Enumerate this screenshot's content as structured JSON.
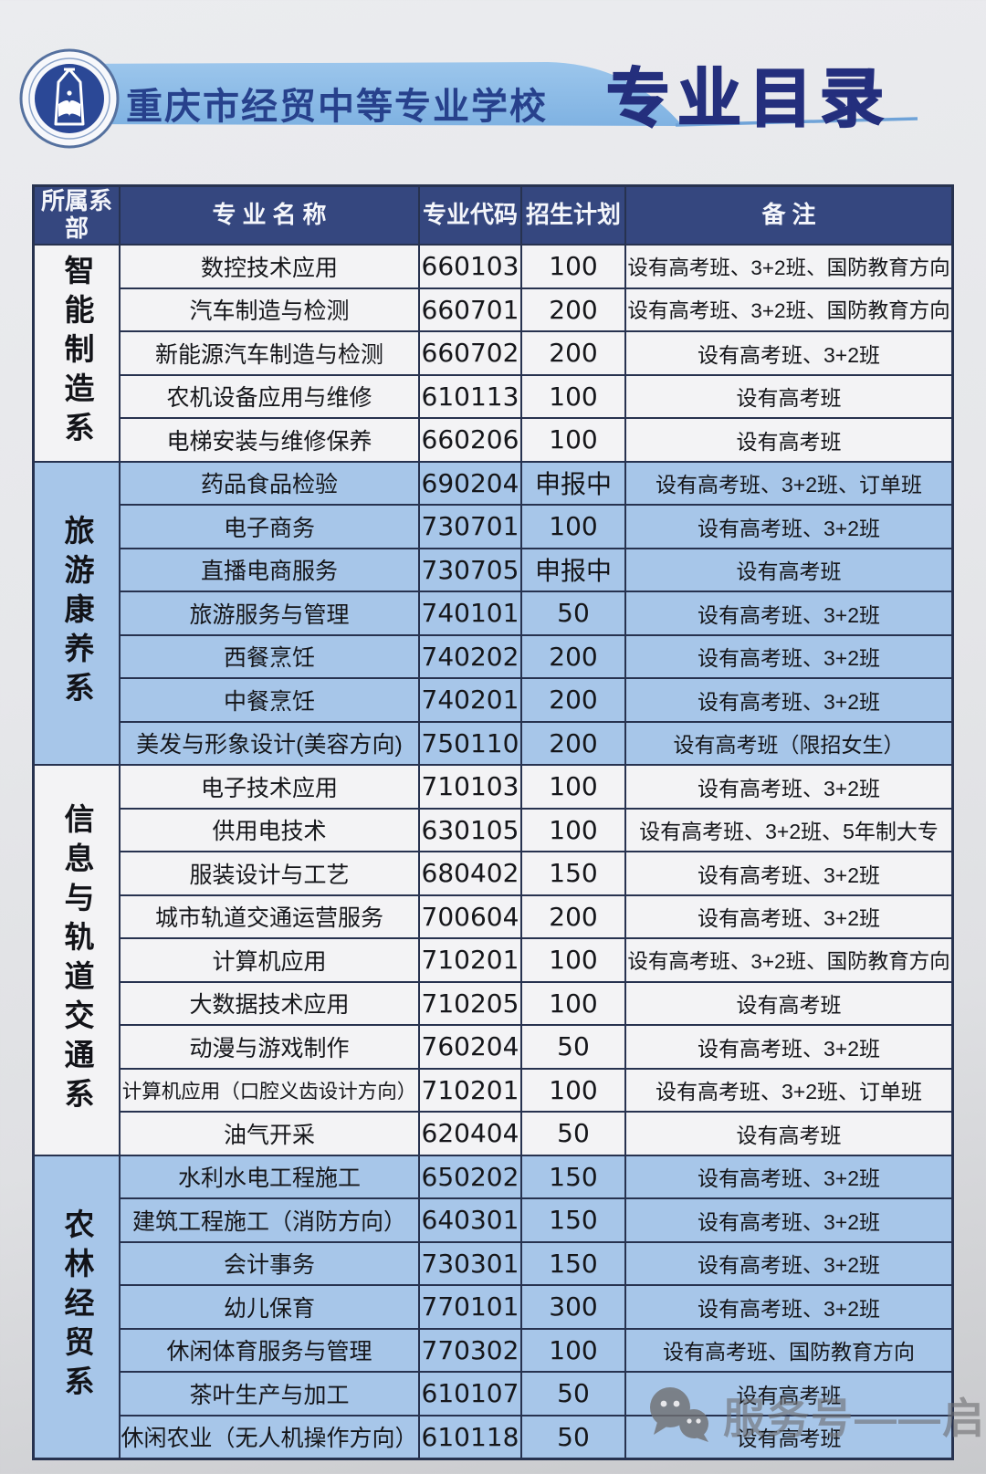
{
  "header": {
    "logo": "school-emblem",
    "school_name": "重庆市经贸中等专业学校",
    "page_title": "专业目录"
  },
  "table": {
    "columns": [
      "所属系部",
      "专业名称",
      "专业代码",
      "招生计划",
      "备注"
    ],
    "sections": [
      {
        "department": "智能制造系",
        "tone": "light",
        "rows": [
          {
            "name": "数控技术应用",
            "code": "660103",
            "plan": "100",
            "remark": "设有高考班、3+2班、国防教育方向"
          },
          {
            "name": "汽车制造与检测",
            "code": "660701",
            "plan": "200",
            "remark": "设有高考班、3+2班、国防教育方向"
          },
          {
            "name": "新能源汽车制造与检测",
            "code": "660702",
            "plan": "200",
            "remark": "设有高考班、3+2班"
          },
          {
            "name": "农机设备应用与维修",
            "code": "610113",
            "plan": "100",
            "remark": "设有高考班"
          },
          {
            "name": "电梯安装与维修保养",
            "code": "660206",
            "plan": "100",
            "remark": "设有高考班"
          }
        ]
      },
      {
        "department": "旅游康养系",
        "tone": "blue",
        "rows": [
          {
            "name": "药品食品检验",
            "code": "690204",
            "plan": "申报中",
            "remark": "设有高考班、3+2班、订单班"
          },
          {
            "name": "电子商务",
            "code": "730701",
            "plan": "100",
            "remark": "设有高考班、3+2班"
          },
          {
            "name": "直播电商服务",
            "code": "730705",
            "plan": "申报中",
            "remark": "设有高考班"
          },
          {
            "name": "旅游服务与管理",
            "code": "740101",
            "plan": "50",
            "remark": "设有高考班、3+2班"
          },
          {
            "name": "西餐烹饪",
            "code": "740202",
            "plan": "200",
            "remark": "设有高考班、3+2班"
          },
          {
            "name": "中餐烹饪",
            "code": "740201",
            "plan": "200",
            "remark": "设有高考班、3+2班"
          },
          {
            "name": "美发与形象设计(美容方向)",
            "code": "750110",
            "plan": "200",
            "remark": "设有高考班（限招女生）"
          }
        ]
      },
      {
        "department": "信息与轨道交通系",
        "tone": "light",
        "rows": [
          {
            "name": "电子技术应用",
            "code": "710103",
            "plan": "100",
            "remark": "设有高考班、3+2班"
          },
          {
            "name": "供用电技术",
            "code": "630105",
            "plan": "100",
            "remark": "设有高考班、3+2班、5年制大专"
          },
          {
            "name": "服装设计与工艺",
            "code": "680402",
            "plan": "150",
            "remark": "设有高考班、3+2班"
          },
          {
            "name": "城市轨道交通运营服务",
            "code": "700604",
            "plan": "200",
            "remark": "设有高考班、3+2班"
          },
          {
            "name": "计算机应用",
            "code": "710201",
            "plan": "100",
            "remark": "设有高考班、3+2班、国防教育方向"
          },
          {
            "name": "大数据技术应用",
            "code": "710205",
            "plan": "100",
            "remark": "设有高考班"
          },
          {
            "name": "动漫与游戏制作",
            "code": "760204",
            "plan": "50",
            "remark": "设有高考班、3+2班"
          },
          {
            "name": "计算机应用（口腔义齿设计方向）",
            "code": "710201",
            "plan": "100",
            "remark": "设有高考班、3+2班、订单班"
          },
          {
            "name": "油气开采",
            "code": "620404",
            "plan": "50",
            "remark": "设有高考班"
          }
        ]
      },
      {
        "department": "农林经贸系",
        "tone": "blue",
        "rows": [
          {
            "name": "水利水电工程施工",
            "code": "650202",
            "plan": "150",
            "remark": "设有高考班、3+2班"
          },
          {
            "name": "建筑工程施工（消防方向）",
            "code": "640301",
            "plan": "150",
            "remark": "设有高考班、3+2班"
          },
          {
            "name": "会计事务",
            "code": "730301",
            "plan": "150",
            "remark": "设有高考班、3+2班"
          },
          {
            "name": "幼儿保育",
            "code": "770101",
            "plan": "300",
            "remark": "设有高考班、3+2班"
          },
          {
            "name": "休闲体育服务与管理",
            "code": "770302",
            "plan": "100",
            "remark": "设有高考班、国防教育方向"
          },
          {
            "name": "茶叶生产与加工",
            "code": "610107",
            "plan": "50",
            "remark": "设有高考班"
          },
          {
            "name": "休闲农业（无人机操作方向）",
            "code": "610118",
            "plan": "50",
            "remark": "设有高考班"
          }
        ]
      }
    ]
  },
  "watermark": {
    "icon": "wechat-icon",
    "text": "服务号——启源智学"
  },
  "theme": {
    "header_bg": "#35477f",
    "section_blue": "#a7c6e9",
    "section_light": "#f3f3f5",
    "border": "#27324f",
    "banner_blue": "#84b7e6",
    "title_color": "#242f7d",
    "school_name_color": "#27418c",
    "line_blue": "#6fa3d8"
  }
}
